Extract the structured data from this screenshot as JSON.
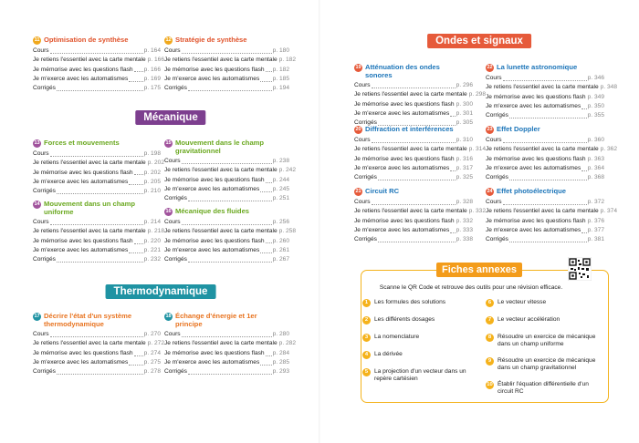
{
  "intro_chapters": [
    {
      "number": "11",
      "title": "Optimisation de synthèse",
      "entries": [
        {
          "label": "Cours",
          "page": "p. 164"
        },
        {
          "label": "Je retiens l'essentiel avec la carte mentale",
          "page": "p. 166"
        },
        {
          "label": "Je mémorise avec les questions flash",
          "page": "p. 166"
        },
        {
          "label": "Je m'exerce avec les automatismes",
          "page": "p. 169"
        },
        {
          "label": "Corrigés",
          "page": "p. 175"
        }
      ]
    },
    {
      "number": "12",
      "title": "Stratégie de synthèse",
      "entries": [
        {
          "label": "Cours",
          "page": "p. 180"
        },
        {
          "label": "Je retiens l'essentiel avec la carte mentale",
          "page": "p. 182"
        },
        {
          "label": "Je mémorise avec les questions flash",
          "page": "p. 182"
        },
        {
          "label": "Je m'exerce avec les automatismes",
          "page": "p. 185"
        },
        {
          "label": "Corrigés",
          "page": "p. 194"
        }
      ]
    }
  ],
  "sections": [
    {
      "title": "Mécanique",
      "chapters": [
        {
          "number": "13",
          "title": "Forces et mouvements",
          "entries": [
            {
              "label": "Cours",
              "page": "p. 198"
            },
            {
              "label": "Je retiens l'essentiel avec la carte mentale",
              "page": "p. 202"
            },
            {
              "label": "Je mémorise avec les questions flash",
              "page": "p. 202"
            },
            {
              "label": "Je m'exerce avec les automatismes",
              "page": "p. 205"
            },
            {
              "label": "Corrigés",
              "page": "p. 210"
            }
          ]
        },
        {
          "number": "14",
          "title": "Mouvement dans un champ uniforme",
          "entries": [
            {
              "label": "Cours",
              "page": "p. 214"
            },
            {
              "label": "Je retiens l'essentiel avec la carte mentale",
              "page": "p. 218"
            },
            {
              "label": "Je mémorise avec les questions flash",
              "page": "p. 220"
            },
            {
              "label": "Je m'exerce avec les automatismes",
              "page": "p. 221"
            },
            {
              "label": "Corrigés",
              "page": "p. 232"
            }
          ]
        },
        {
          "number": "15",
          "title": "Mouvement dans le champ gravitationnel",
          "entries": [
            {
              "label": "Cours",
              "page": "p. 238"
            },
            {
              "label": "Je retiens l'essentiel avec la carte mentale",
              "page": "p. 242"
            },
            {
              "label": "Je mémorise avec les questions flash",
              "page": "p. 244"
            },
            {
              "label": "Je m'exerce avec les automatismes",
              "page": "p. 245"
            },
            {
              "label": "Corrigés",
              "page": "p. 251"
            }
          ]
        },
        {
          "number": "16",
          "title": "Mécanique des fluides",
          "entries": [
            {
              "label": "Cours",
              "page": "p. 256"
            },
            {
              "label": "Je retiens l'essentiel avec la carte mentale",
              "page": "p. 258"
            },
            {
              "label": "Je mémorise avec les questions flash",
              "page": "p. 260"
            },
            {
              "label": "Je m'exerce avec les automatismes",
              "page": "p. 261"
            },
            {
              "label": "Corrigés",
              "page": "p. 267"
            }
          ]
        }
      ]
    },
    {
      "title": "Thermodynamique",
      "chapters": [
        {
          "number": "17",
          "title": "Décrire l'état d'un système thermodynamique",
          "entries": [
            {
              "label": "Cours",
              "page": "p. 270"
            },
            {
              "label": "Je retiens l'essentiel avec la carte mentale",
              "page": "p. 272"
            },
            {
              "label": "Je mémorise avec les questions flash",
              "page": "p. 274"
            },
            {
              "label": "Je m'exerce avec les automatismes",
              "page": "p. 275"
            },
            {
              "label": "Corrigés",
              "page": "p. 278"
            }
          ]
        },
        {
          "number": "18",
          "title": "Échange d'énergie et 1er principe",
          "entries": [
            {
              "label": "Cours",
              "page": "p. 280"
            },
            {
              "label": "Je retiens l'essentiel avec la carte mentale",
              "page": "p. 282"
            },
            {
              "label": "Je mémorise avec les questions flash",
              "page": "p. 284"
            },
            {
              "label": "Je m'exerce avec les automatismes",
              "page": "p. 285"
            },
            {
              "label": "Corrigés",
              "page": "p. 293"
            }
          ]
        }
      ]
    },
    {
      "title": "Ondes et signaux",
      "chapters": [
        {
          "number": "19",
          "title": "Atténuation des ondes sonores",
          "entries": [
            {
              "label": "Cours",
              "page": "p. 296"
            },
            {
              "label": "Je retiens l'essentiel avec la carte mentale",
              "page": "p. 298"
            },
            {
              "label": "Je mémorise avec les questions flash",
              "page": "p. 300"
            },
            {
              "label": "Je m'exerce avec les automatismes",
              "page": "p. 301"
            },
            {
              "label": "Corrigés",
              "page": "p. 305"
            }
          ]
        },
        {
          "number": "20",
          "title": "Diffraction et interférences",
          "entries": [
            {
              "label": "Cours",
              "page": "p. 310"
            },
            {
              "label": "Je retiens l'essentiel avec la carte mentale",
              "page": "p. 314"
            },
            {
              "label": "Je mémorise avec les questions flash",
              "page": "p. 316"
            },
            {
              "label": "Je m'exerce avec les automatismes",
              "page": "p. 317"
            },
            {
              "label": "Corrigés",
              "page": "p. 325"
            }
          ]
        },
        {
          "number": "21",
          "title": "Circuit RC",
          "entries": [
            {
              "label": "Cours",
              "page": "p. 328"
            },
            {
              "label": "Je retiens l'essentiel avec la carte mentale",
              "page": "p. 332"
            },
            {
              "label": "Je mémorise avec les questions flash",
              "page": "p. 332"
            },
            {
              "label": "Je m'exerce avec les automatismes",
              "page": "p. 333"
            },
            {
              "label": "Corrigés",
              "page": "p. 338"
            }
          ]
        },
        {
          "number": "22",
          "title": "La lunette astronomique",
          "entries": [
            {
              "label": "Cours",
              "page": "p. 346"
            },
            {
              "label": "Je retiens l'essentiel avec la carte mentale",
              "page": "p. 348"
            },
            {
              "label": "Je mémorise avec les questions flash",
              "page": "p. 349"
            },
            {
              "label": "Je m'exerce avec les automatismes",
              "page": "p. 350"
            },
            {
              "label": "Corrigés",
              "page": "p. 355"
            }
          ]
        },
        {
          "number": "23",
          "title": "Effet Doppler",
          "entries": [
            {
              "label": "Cours",
              "page": "p. 360"
            },
            {
              "label": "Je retiens l'essentiel avec la carte mentale",
              "page": "p. 362"
            },
            {
              "label": "Je mémorise avec les questions flash",
              "page": "p. 363"
            },
            {
              "label": "Je m'exerce avec les automatismes",
              "page": "p. 364"
            },
            {
              "label": "Corrigés",
              "page": "p. 368"
            }
          ]
        },
        {
          "number": "24",
          "title": "Effet photoélectrique",
          "entries": [
            {
              "label": "Cours",
              "page": "p. 372"
            },
            {
              "label": "Je retiens l'essentiel avec la carte mentale",
              "page": "p. 374"
            },
            {
              "label": "Je mémorise avec les questions flash",
              "page": "p. 376"
            },
            {
              "label": "Je m'exerce avec les automatismes",
              "page": "p. 377"
            },
            {
              "label": "Corrigés",
              "page": "p. 381"
            }
          ]
        }
      ]
    }
  ],
  "annexes": {
    "title": "Fiches annexes",
    "intro": "Scanne le QR Code et retrouve des outils pour une révision efficace.",
    "items": [
      {
        "number": "1",
        "label": "Les formules des solutions"
      },
      {
        "number": "2",
        "label": "Les différents dosages"
      },
      {
        "number": "3",
        "label": "La nomenclature"
      },
      {
        "number": "4",
        "label": "La dérivée"
      },
      {
        "number": "5",
        "label": "La projection d'un vecteur dans un repère cartésien"
      },
      {
        "number": "6",
        "label": "Le vecteur vitesse"
      },
      {
        "number": "7",
        "label": "Le vecteur accélération"
      },
      {
        "number": "8",
        "label": "Résoudre un exercice de mécanique dans un champ uniforme"
      },
      {
        "number": "9",
        "label": "Résoudre un exercice de mécanique dans un champ gravitationnel"
      },
      {
        "number": "10",
        "label": "Établir l'équation différentielle d'un circuit RC"
      }
    ]
  }
}
